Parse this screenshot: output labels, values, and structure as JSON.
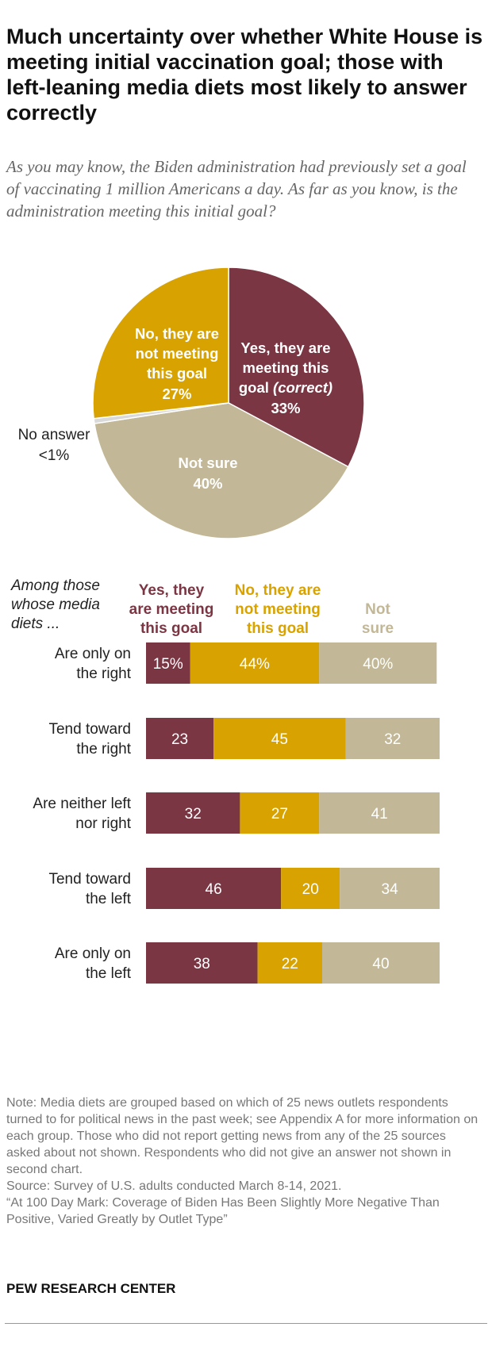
{
  "title": "Much uncertainty over whether White House is meeting initial vaccination goal; those with left-leaning media diets most likely to answer correctly",
  "subtitle": "As you may know, the Biden administration had previously set a goal of vaccinating 1 million Americans a day. As far as you know, is the administration meeting this initial goal?",
  "colors": {
    "yes": "#7b3644",
    "no": "#d8a200",
    "not_sure": "#c2b897",
    "no_answer": "#d9d9d9",
    "muted_text": "#888888"
  },
  "chart_data": [
    {
      "type": "pie",
      "slices": [
        {
          "key": "yes",
          "label": [
            "Yes, they are",
            "meeting this",
            "goal (correct)"
          ],
          "value": 33,
          "value_label": "33%"
        },
        {
          "key": "not_sure",
          "label": [
            "Not sure"
          ],
          "value": 40,
          "value_label": "40%"
        },
        {
          "key": "no_answer",
          "label": [
            "No answer"
          ],
          "value": 0.6,
          "value_label": "<1%"
        },
        {
          "key": "no",
          "label": [
            "No, they are",
            "not meeting",
            "this goal"
          ],
          "value": 27,
          "value_label": "27%"
        }
      ]
    },
    {
      "type": "bar",
      "stacked": true,
      "orientation": "horizontal",
      "row_header": [
        "Among those",
        "whose media",
        "diets ..."
      ],
      "series_headers": [
        [
          "Yes, they",
          "are meeting",
          "this goal"
        ],
        [
          "No, they are",
          "not meeting",
          "this goal"
        ],
        [
          "Not",
          "sure"
        ]
      ],
      "categories": [
        [
          "Are only on",
          "the right"
        ],
        [
          "Tend toward",
          "the right"
        ],
        [
          "Are neither left",
          "nor right"
        ],
        [
          "Tend toward",
          "the left"
        ],
        [
          "Are only on",
          "the left"
        ]
      ],
      "series": [
        {
          "name": "Yes, they are meeting this goal",
          "key": "yes",
          "values": [
            15,
            23,
            32,
            46,
            38
          ],
          "labels": [
            "15%",
            "23",
            "32",
            "46",
            "38"
          ]
        },
        {
          "name": "No, they are not meeting this goal",
          "key": "no",
          "values": [
            44,
            45,
            27,
            20,
            22
          ],
          "labels": [
            "44%",
            "45",
            "27",
            "20",
            "22"
          ]
        },
        {
          "name": "Not sure",
          "key": "not_sure",
          "values": [
            40,
            32,
            41,
            34,
            40
          ],
          "labels": [
            "40%",
            "32",
            "41",
            "34",
            "40"
          ]
        }
      ]
    }
  ],
  "note": "Note: Media diets are grouped based on which of 25 news outlets respondents turned to for political news in the past week; see Appendix A for more information on each group. Those who did not report getting news from any of the 25 sources asked about not shown. Respondents who did not give an answer not shown in second chart.",
  "source": "Source: Survey of U.S. adults conducted March 8-14, 2021.",
  "report": "“At 100 Day Mark: Coverage of Biden Has Been Slightly More Negative Than Positive, Varied Greatly by Outlet Type”",
  "footer": "PEW RESEARCH CENTER"
}
